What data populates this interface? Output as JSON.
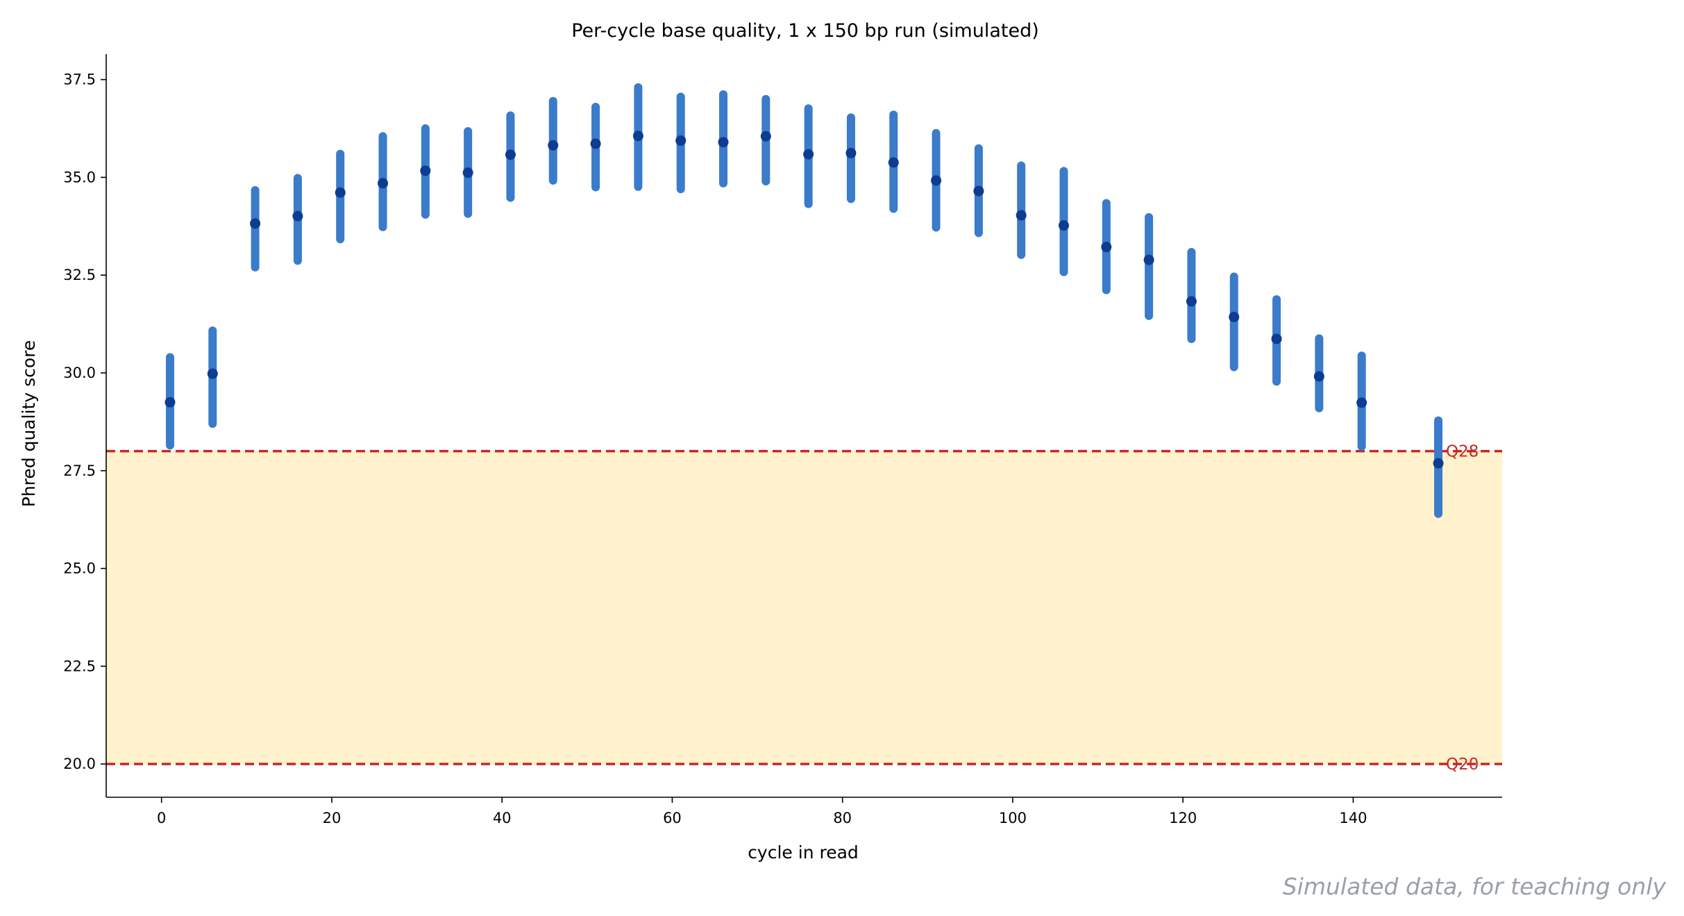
{
  "chart_data": {
    "type": "scatter",
    "title": "Per-cycle base quality, 1 x 150 bp run (simulated)",
    "xlabel": "cycle in read",
    "ylabel": "Phred quality score",
    "xlim": [
      -6.5,
      157.5
    ],
    "ylim": [
      19.15,
      38.15
    ],
    "x_ticks": [
      0,
      20,
      40,
      60,
      80,
      100,
      120,
      140
    ],
    "y_ticks": [
      20.0,
      22.5,
      25.0,
      27.5,
      30.0,
      32.5,
      35.0,
      37.5
    ],
    "x_tick_labels": [
      "0",
      "20",
      "40",
      "60",
      "80",
      "100",
      "120",
      "140"
    ],
    "y_tick_labels": [
      "20.0",
      "22.5",
      "25.0",
      "27.5",
      "30.0",
      "32.5",
      "35.0",
      "37.5"
    ],
    "grid": false,
    "series": [
      {
        "x": [
          1,
          6,
          11,
          16,
          21,
          26,
          31,
          36,
          41,
          46,
          51,
          56,
          61,
          66,
          71,
          76,
          81,
          86,
          91,
          96,
          101,
          106,
          111,
          116,
          121,
          126,
          131,
          136,
          141,
          150
        ],
        "y": [
          29.25,
          29.98,
          33.82,
          34.01,
          34.61,
          34.85,
          35.17,
          35.12,
          35.58,
          35.82,
          35.86,
          36.06,
          35.94,
          35.9,
          36.05,
          35.59,
          35.62,
          35.38,
          34.92,
          34.65,
          34.03,
          33.77,
          33.22,
          32.89,
          31.83,
          31.43,
          30.87,
          29.91,
          29.24,
          27.69
        ],
        "low": [
          28.15,
          28.7,
          32.7,
          32.87,
          33.42,
          33.73,
          34.05,
          34.07,
          34.48,
          34.92,
          34.75,
          34.76,
          34.7,
          34.85,
          34.9,
          34.32,
          34.45,
          34.2,
          33.72,
          33.58,
          33.02,
          32.58,
          32.12,
          31.46,
          30.87,
          30.15,
          29.78,
          29.1,
          28.12,
          26.4
        ],
        "high": [
          30.4,
          31.08,
          34.67,
          34.98,
          35.6,
          36.05,
          36.25,
          36.18,
          36.58,
          36.95,
          36.8,
          37.3,
          37.06,
          37.12,
          37.0,
          36.76,
          36.53,
          36.6,
          36.13,
          35.74,
          35.3,
          35.16,
          34.34,
          33.98,
          33.09,
          32.46,
          31.88,
          30.88,
          30.44,
          28.78
        ]
      }
    ],
    "thresholds": [
      {
        "value": 28,
        "label": "Q28"
      },
      {
        "value": 20,
        "label": "Q20"
      }
    ],
    "band": {
      "from": 20,
      "to": 28
    },
    "colors": {
      "bar": "#3a7bca",
      "point": "#0d3c91",
      "threshold": "#c62828",
      "band": "#fff2cc"
    },
    "watermark": "Simulated data, for teaching only"
  }
}
